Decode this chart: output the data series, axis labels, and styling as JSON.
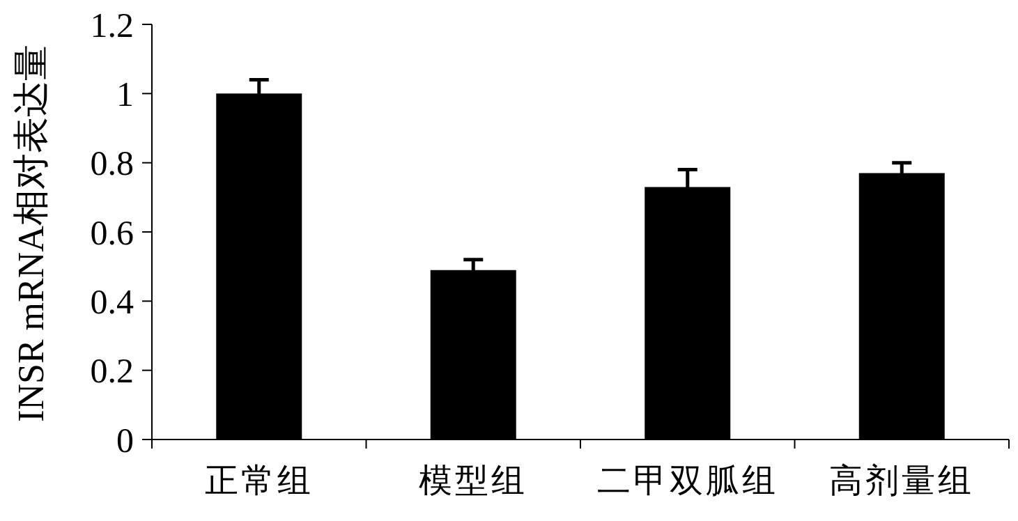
{
  "chart_data": {
    "type": "bar",
    "ylabel": "INSR mRNA相对表达量",
    "categories": [
      "正常组",
      "模型组",
      "二甲双胍组",
      "高剂量组"
    ],
    "values": [
      1.0,
      0.49,
      0.73,
      0.77
    ],
    "errors": [
      0.04,
      0.03,
      0.05,
      0.03
    ],
    "color": "#000000",
    "ylim": [
      0,
      1.2
    ],
    "yticks": [
      0,
      0.2,
      0.4,
      0.6,
      0.8,
      1,
      1.2
    ]
  }
}
